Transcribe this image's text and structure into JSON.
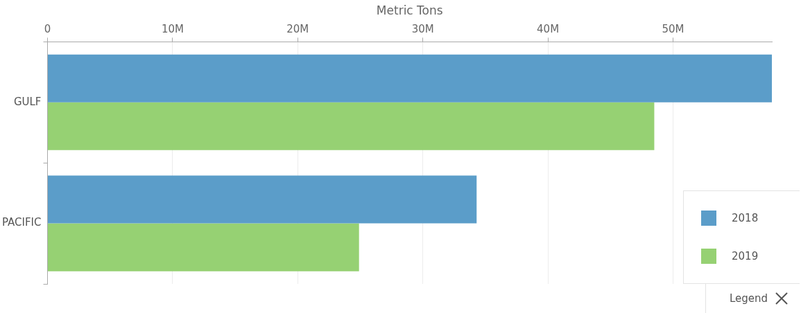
{
  "chart_data": {
    "type": "bar",
    "orientation": "horizontal",
    "xlabel": "Metric Tons",
    "legend_title": "Legend",
    "categories": [
      "GULF",
      "PACIFIC"
    ],
    "series": [
      {
        "name": "2018",
        "color": "#5b9dc9",
        "values": [
          57.9,
          34.3
        ]
      },
      {
        "name": "2019",
        "color": "#96d173",
        "values": [
          48.5,
          24.9
        ]
      }
    ],
    "xlim": [
      0,
      57.9
    ],
    "xticks": [
      0,
      {
        "value": 10,
        "label": "10M"
      },
      {
        "value": 20,
        "label": "20M"
      },
      {
        "value": 30,
        "label": "30M"
      },
      {
        "value": 40,
        "label": "40M"
      },
      {
        "value": 50,
        "label": "50M"
      }
    ],
    "grid": "x",
    "legend": "bottom right"
  }
}
